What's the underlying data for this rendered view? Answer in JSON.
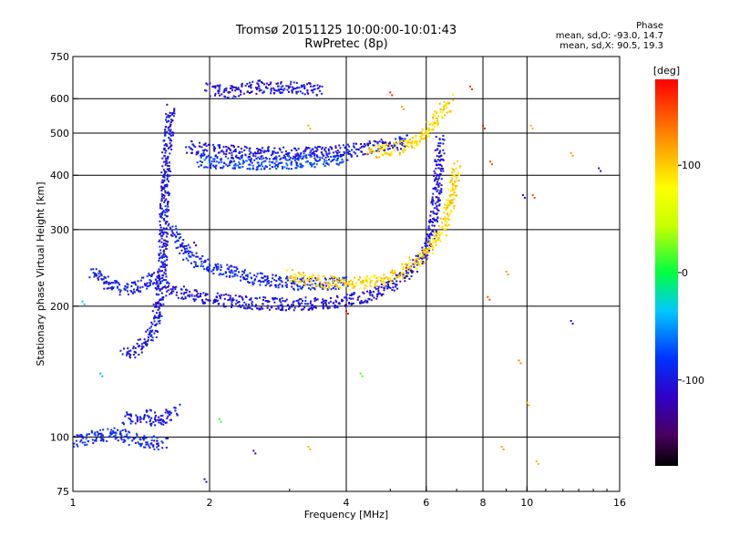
{
  "header": {
    "title_line1": "Tromsø 20151125 10:00:00-10:01:43",
    "title_line2": "RwPretec (8p)",
    "phase_title": "Phase",
    "phase_o": "mean, sd,O: -93.0, 14.7",
    "phase_x": "mean, sd,X: 90.5, 19.3"
  },
  "colorbar": {
    "unit": "[deg]",
    "ticks": [
      {
        "value": 100,
        "label": "100"
      },
      {
        "value": 0,
        "label": "0"
      },
      {
        "value": -100,
        "label": "-100"
      }
    ],
    "range": [
      -180,
      180
    ]
  },
  "chart_data": {
    "type": "scatter",
    "title": "Tromsø 20151125 10:00:00-10:01:43",
    "subtitle": "RwPretec (8p)",
    "xlabel": "Frequency [MHz]",
    "ylabel": "Stationary phase Virtual Height [km]",
    "xscale": "log",
    "yscale": "log",
    "xlim": [
      1,
      16
    ],
    "ylim": [
      75,
      750
    ],
    "xticks": [
      {
        "value": 1,
        "label": "1"
      },
      {
        "value": 2,
        "label": "2"
      },
      {
        "value": 4,
        "label": "4"
      },
      {
        "value": 6,
        "label": "6"
      },
      {
        "value": 8,
        "label": "8"
      },
      {
        "value": 10,
        "label": "10"
      },
      {
        "value": 16,
        "label": "16"
      }
    ],
    "yticks": [
      {
        "value": 75,
        "label": "75"
      },
      {
        "value": 100,
        "label": "100"
      },
      {
        "value": 200,
        "label": "200"
      },
      {
        "value": 300,
        "label": "300"
      },
      {
        "value": 400,
        "label": "400"
      },
      {
        "value": 500,
        "label": "500"
      },
      {
        "value": 600,
        "label": "600"
      },
      {
        "value": 750,
        "label": "750"
      }
    ],
    "grid_x": [
      2,
      4,
      6,
      8,
      10
    ],
    "grid_y": [
      100,
      200,
      300,
      400,
      500,
      600
    ],
    "color_variable": "phase",
    "color_range": [
      -180,
      180
    ],
    "traces": [
      {
        "points": [
          [
            1.1,
            240
          ],
          [
            1.2,
            225
          ],
          [
            1.3,
            218
          ],
          [
            1.4,
            222
          ],
          [
            1.5,
            230
          ],
          [
            1.58,
            235
          ]
        ],
        "phase": -95
      },
      {
        "points": [
          [
            1.3,
            155
          ],
          [
            1.4,
            160
          ],
          [
            1.5,
            175
          ],
          [
            1.55,
            200
          ],
          [
            1.58,
            260
          ],
          [
            1.6,
            400
          ],
          [
            1.62,
            480
          ],
          [
            1.64,
            570
          ]
        ],
        "phase": -100
      },
      {
        "points": [
          [
            1.6,
            220
          ],
          [
            1.8,
            212
          ],
          [
            2.0,
            208
          ],
          [
            2.5,
            203
          ],
          [
            3.0,
            202
          ],
          [
            3.5,
            203
          ],
          [
            4.0,
            206
          ],
          [
            4.5,
            212
          ],
          [
            5.0,
            222
          ],
          [
            5.5,
            240
          ],
          [
            6.0,
            265
          ],
          [
            6.2,
            300
          ],
          [
            6.35,
            380
          ],
          [
            6.45,
            480
          ]
        ],
        "phase": -105
      },
      {
        "points": [
          [
            1.65,
            300
          ],
          [
            1.8,
            260
          ],
          [
            2.0,
            245
          ],
          [
            2.5,
            232
          ],
          [
            3.0,
            226
          ],
          [
            3.5,
            224
          ],
          [
            4.0,
            226
          ]
        ],
        "phase": -90
      },
      {
        "points": [
          [
            3.0,
            235
          ],
          [
            3.5,
            228
          ],
          [
            4.0,
            224
          ],
          [
            4.5,
            227
          ],
          [
            5.0,
            232
          ],
          [
            5.5,
            245
          ],
          [
            6.0,
            265
          ],
          [
            6.5,
            295
          ],
          [
            6.8,
            350
          ],
          [
            7.0,
            420
          ]
        ],
        "phase": 95
      },
      {
        "points": [
          [
            1.8,
            465
          ],
          [
            2.0,
            455
          ],
          [
            2.5,
            450
          ],
          [
            3.0,
            448
          ],
          [
            3.5,
            450
          ],
          [
            4.0,
            455
          ],
          [
            4.5,
            462
          ],
          [
            5.0,
            470
          ],
          [
            5.5,
            480
          ]
        ],
        "phase": -100
      },
      {
        "points": [
          [
            1.9,
            430
          ],
          [
            2.5,
            425
          ],
          [
            3.0,
            428
          ],
          [
            3.5,
            433
          ],
          [
            4.0,
            440
          ]
        ],
        "phase": -80
      },
      {
        "points": [
          [
            4.5,
            450
          ],
          [
            5.0,
            458
          ],
          [
            5.5,
            470
          ],
          [
            6.0,
            500
          ],
          [
            6.5,
            560
          ],
          [
            6.8,
            600
          ]
        ],
        "phase": 95
      },
      {
        "points": [
          [
            2.0,
            630
          ],
          [
            2.2,
            620
          ],
          [
            2.6,
            640
          ],
          [
            3.0,
            635
          ],
          [
            3.5,
            630
          ]
        ],
        "phase": -105
      },
      {
        "points": [
          [
            1.3,
            110
          ],
          [
            1.45,
            112
          ],
          [
            1.55,
            108
          ],
          [
            1.7,
            116
          ]
        ],
        "phase": -100
      },
      {
        "points": [
          [
            1.0,
            97
          ],
          [
            1.1,
            100
          ],
          [
            1.25,
            102
          ],
          [
            1.4,
            98
          ],
          [
            1.6,
            96
          ]
        ],
        "phase": -90
      }
    ],
    "outliers": [
      {
        "x": 7.5,
        "y": 640,
        "phase": 160
      },
      {
        "x": 8.0,
        "y": 520,
        "phase": 170
      },
      {
        "x": 8.3,
        "y": 430,
        "phase": 150
      },
      {
        "x": 9.8,
        "y": 360,
        "phase": -110
      },
      {
        "x": 10.2,
        "y": 520,
        "phase": 110
      },
      {
        "x": 10.3,
        "y": 360,
        "phase": 150
      },
      {
        "x": 12.5,
        "y": 450,
        "phase": 120
      },
      {
        "x": 14.4,
        "y": 415,
        "phase": -130
      },
      {
        "x": 12.5,
        "y": 185,
        "phase": -115
      },
      {
        "x": 9.6,
        "y": 150,
        "phase": 130
      },
      {
        "x": 8.2,
        "y": 210,
        "phase": 150
      },
      {
        "x": 9.0,
        "y": 240,
        "phase": 120
      },
      {
        "x": 10.0,
        "y": 120,
        "phase": 120
      },
      {
        "x": 8.8,
        "y": 95,
        "phase": 120
      },
      {
        "x": 10.5,
        "y": 88,
        "phase": 110
      },
      {
        "x": 2.1,
        "y": 110,
        "phase": 10
      },
      {
        "x": 1.95,
        "y": 80,
        "phase": -120
      },
      {
        "x": 2.5,
        "y": 93,
        "phase": -110
      },
      {
        "x": 3.3,
        "y": 95,
        "phase": 110
      },
      {
        "x": 4.3,
        "y": 140,
        "phase": 20
      },
      {
        "x": 4.0,
        "y": 195,
        "phase": 175
      },
      {
        "x": 3.5,
        "y": 625,
        "phase": -100
      },
      {
        "x": 3.3,
        "y": 520,
        "phase": 110
      },
      {
        "x": 5.0,
        "y": 620,
        "phase": 170
      },
      {
        "x": 5.3,
        "y": 575,
        "phase": 120
      },
      {
        "x": 1.15,
        "y": 140,
        "phase": -40
      },
      {
        "x": 1.05,
        "y": 205,
        "phase": -30
      },
      {
        "x": 1.85,
        "y": 280,
        "phase": -120
      }
    ]
  }
}
